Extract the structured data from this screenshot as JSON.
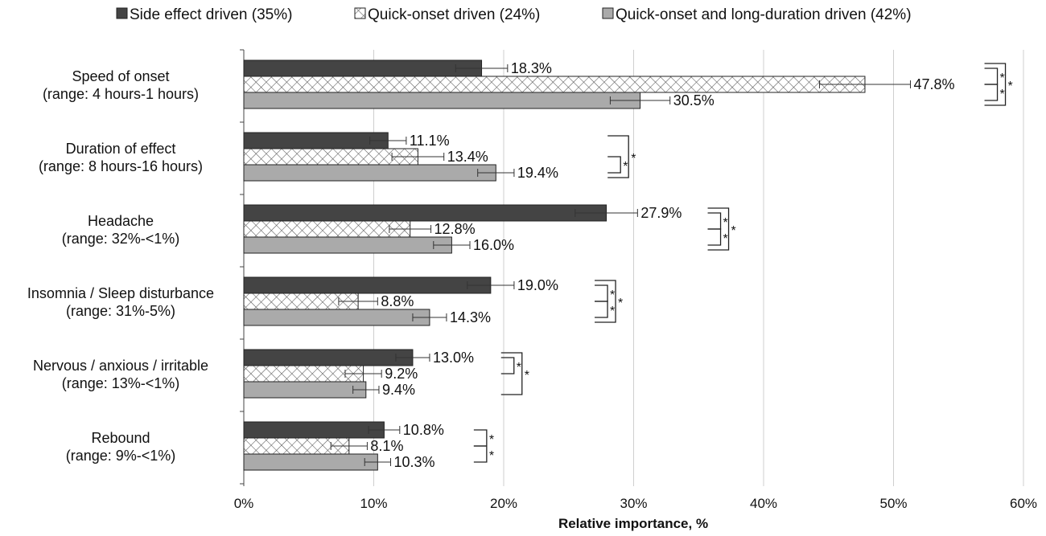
{
  "chart_data": {
    "type": "bar",
    "orientation": "horizontal",
    "xlabel": "Relative importance, %",
    "xlim": [
      0,
      60
    ],
    "xticks": [
      0,
      10,
      20,
      30,
      40,
      50,
      60
    ],
    "xtick_labels": [
      "0%",
      "10%",
      "20%",
      "30%",
      "40%",
      "50%",
      "60%"
    ],
    "grid": "vertical",
    "legend_position": "top",
    "categories": [
      {
        "name": "Speed of onset",
        "range": "(range: 4 hours-1 hours)"
      },
      {
        "name": "Duration of effect",
        "range": "(range: 8 hours-16 hours)"
      },
      {
        "name": "Headache",
        "range": "(range: 32%-<1%)"
      },
      {
        "name": "Insomnia / Sleep disturbance",
        "range": "(range: 31%-5%)"
      },
      {
        "name": "Nervous / anxious / irritable",
        "range": "(range: 13%-<1%)"
      },
      {
        "name": "Rebound",
        "range": "(range: 9%-<1%)"
      }
    ],
    "series": [
      {
        "name": "Side effect driven (35%)",
        "color": "#444444",
        "pattern": "solid",
        "values": [
          18.3,
          11.1,
          27.9,
          19.0,
          13.0,
          10.8
        ],
        "errors": [
          2.0,
          1.4,
          2.4,
          1.8,
          1.3,
          1.2
        ],
        "labels": [
          "18.3%",
          "11.1%",
          "27.9%",
          "19.0%",
          "13.0%",
          "10.8%"
        ]
      },
      {
        "name": "Quick-onset driven (24%)",
        "color": "#ffffff",
        "pattern": "crosshatch",
        "values": [
          47.8,
          13.4,
          12.8,
          8.8,
          9.2,
          8.1
        ],
        "errors": [
          3.5,
          2.0,
          1.6,
          1.5,
          1.4,
          1.4
        ],
        "labels": [
          "47.8%",
          "13.4%",
          "12.8%",
          "8.8%",
          "9.2%",
          "8.1%"
        ]
      },
      {
        "name": "Quick-onset and long-duration driven (42%)",
        "color": "#aaaaaa",
        "pattern": "solid",
        "values": [
          30.5,
          19.4,
          16.0,
          14.3,
          9.4,
          10.3
        ],
        "errors": [
          2.3,
          1.4,
          1.4,
          1.3,
          1.0,
          1.0
        ],
        "labels": [
          "30.5%",
          "19.4%",
          "16.0%",
          "14.3%",
          "9.4%",
          "10.3%"
        ]
      }
    ],
    "significance": [
      {
        "category": 0,
        "x": 57.0,
        "pairs": [
          [
            0,
            1
          ],
          [
            1,
            2
          ],
          [
            0,
            2
          ]
        ]
      },
      {
        "category": 1,
        "x": 28.0,
        "pairs": [
          [
            1,
            2
          ],
          [
            0,
            2
          ]
        ]
      },
      {
        "category": 2,
        "x": 35.7,
        "pairs": [
          [
            0,
            1
          ],
          [
            1,
            2
          ],
          [
            0,
            2
          ]
        ]
      },
      {
        "category": 3,
        "x": 27.0,
        "pairs": [
          [
            0,
            1
          ],
          [
            1,
            2
          ],
          [
            0,
            2
          ]
        ]
      },
      {
        "category": 4,
        "x": 19.8,
        "pairs": [
          [
            0,
            1
          ],
          [
            0,
            2
          ]
        ]
      },
      {
        "category": 5,
        "x": 17.7,
        "pairs": [
          [
            0,
            1
          ],
          [
            1,
            2
          ]
        ]
      }
    ],
    "significance_marker": "*"
  }
}
